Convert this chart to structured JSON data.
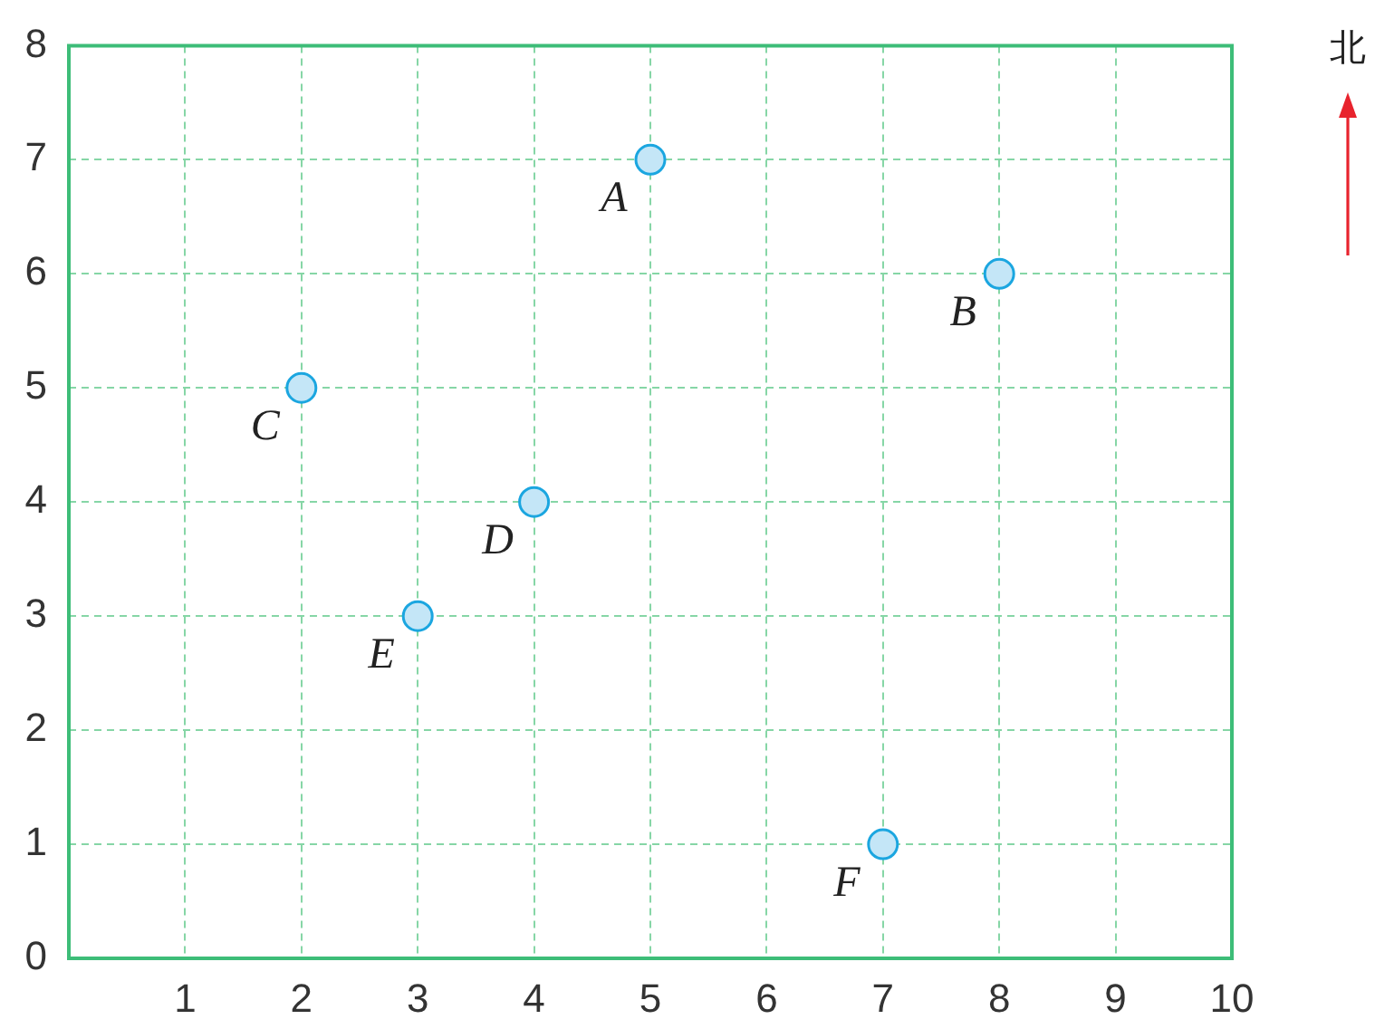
{
  "chart_data": {
    "type": "scatter",
    "x": [
      5,
      8,
      2,
      4,
      3,
      7
    ],
    "values": [
      7,
      6,
      5,
      4,
      3,
      1
    ],
    "color": "#c4e6f7",
    "marker": "circle",
    "xlim": [
      0,
      10
    ],
    "xticks": [
      1,
      2,
      3,
      4,
      5,
      6,
      7,
      8,
      9,
      10
    ],
    "ylim": [
      0,
      8
    ],
    "yticks": [
      0,
      1,
      2,
      3,
      4,
      5,
      6,
      7,
      8
    ],
    "grid": true,
    "annotations": [
      {
        "text": "A",
        "x": 5,
        "y": 7
      },
      {
        "text": "B",
        "x": 8,
        "y": 6
      },
      {
        "text": "C",
        "x": 2,
        "y": 5
      },
      {
        "text": "D",
        "x": 4,
        "y": 4
      },
      {
        "text": "E",
        "x": 3,
        "y": 3
      },
      {
        "text": "F",
        "x": 7,
        "y": 1
      },
      "北"
    ]
  }
}
